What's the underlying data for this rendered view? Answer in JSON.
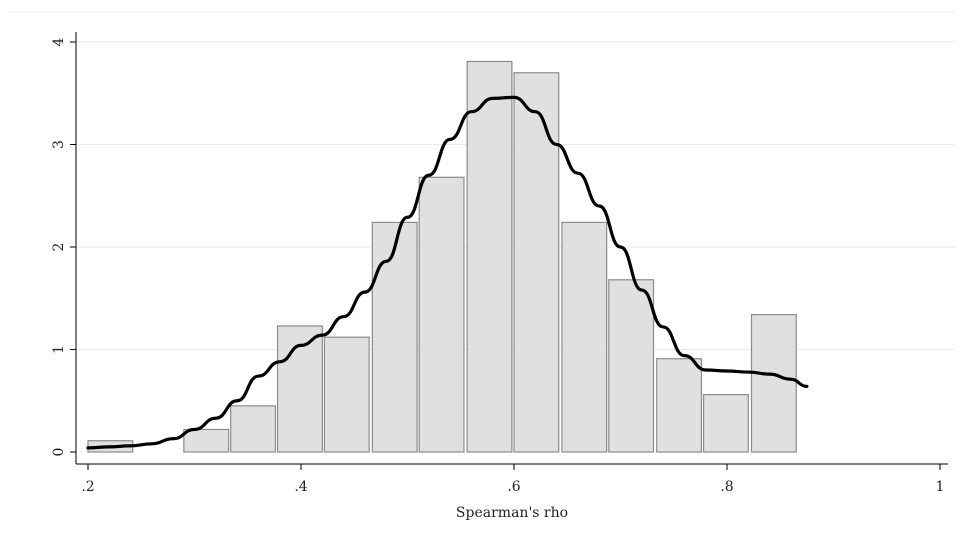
{
  "chart_data": {
    "type": "bar",
    "title": "",
    "xlabel": "Spearman's rho",
    "ylabel": "",
    "xlim": [
      0.2,
      1.0
    ],
    "ylim": [
      0,
      4
    ],
    "grid": true,
    "x_ticks": [
      {
        "value": 0.2,
        "label": ".2"
      },
      {
        "value": 0.4,
        "label": ".4"
      },
      {
        "value": 0.6,
        "label": ".6"
      },
      {
        "value": 0.8,
        "label": ".8"
      },
      {
        "value": 1.0,
        "label": "1"
      }
    ],
    "y_ticks": [
      {
        "value": 0,
        "label": "0"
      },
      {
        "value": 1,
        "label": "1"
      },
      {
        "value": 2,
        "label": "2"
      },
      {
        "value": 3,
        "label": "3"
      },
      {
        "value": 4,
        "label": "4"
      }
    ],
    "histogram": {
      "bins": [
        {
          "x0": 0.2,
          "x1": 0.242,
          "density": 0.11
        },
        {
          "x0": 0.29,
          "x1": 0.332,
          "density": 0.22
        },
        {
          "x0": 0.334,
          "x1": 0.376,
          "density": 0.45
        },
        {
          "x0": 0.378,
          "x1": 0.42,
          "density": 1.23
        },
        {
          "x0": 0.422,
          "x1": 0.464,
          "density": 1.12
        },
        {
          "x0": 0.467,
          "x1": 0.509,
          "density": 2.24
        },
        {
          "x0": 0.511,
          "x1": 0.553,
          "density": 2.68
        },
        {
          "x0": 0.556,
          "x1": 0.598,
          "density": 3.81
        },
        {
          "x0": 0.6,
          "x1": 0.642,
          "density": 3.7
        },
        {
          "x0": 0.645,
          "x1": 0.687,
          "density": 2.24
        },
        {
          "x0": 0.689,
          "x1": 0.731,
          "density": 1.68
        },
        {
          "x0": 0.734,
          "x1": 0.776,
          "density": 0.91
        },
        {
          "x0": 0.778,
          "x1": 0.82,
          "density": 0.56
        },
        {
          "x0": 0.823,
          "x1": 0.865,
          "density": 1.34
        }
      ],
      "fill": "#e0e0e0",
      "stroke": "#8c8c8c"
    },
    "density_curve": {
      "color": "#000000",
      "points": [
        [
          0.2,
          0.04
        ],
        [
          0.22,
          0.05
        ],
        [
          0.24,
          0.06
        ],
        [
          0.26,
          0.08
        ],
        [
          0.28,
          0.13
        ],
        [
          0.3,
          0.22
        ],
        [
          0.32,
          0.33
        ],
        [
          0.34,
          0.5
        ],
        [
          0.36,
          0.74
        ],
        [
          0.38,
          0.88
        ],
        [
          0.4,
          1.04
        ],
        [
          0.42,
          1.14
        ],
        [
          0.44,
          1.32
        ],
        [
          0.46,
          1.56
        ],
        [
          0.48,
          1.86
        ],
        [
          0.5,
          2.29
        ],
        [
          0.52,
          2.7
        ],
        [
          0.54,
          3.05
        ],
        [
          0.56,
          3.32
        ],
        [
          0.58,
          3.45
        ],
        [
          0.6,
          3.46
        ],
        [
          0.62,
          3.32
        ],
        [
          0.64,
          3.0
        ],
        [
          0.66,
          2.72
        ],
        [
          0.68,
          2.4
        ],
        [
          0.7,
          2.0
        ],
        [
          0.72,
          1.58
        ],
        [
          0.74,
          1.22
        ],
        [
          0.76,
          0.94
        ],
        [
          0.78,
          0.8
        ],
        [
          0.8,
          0.79
        ],
        [
          0.82,
          0.78
        ],
        [
          0.84,
          0.76
        ],
        [
          0.86,
          0.71
        ],
        [
          0.875,
          0.64
        ]
      ]
    }
  }
}
